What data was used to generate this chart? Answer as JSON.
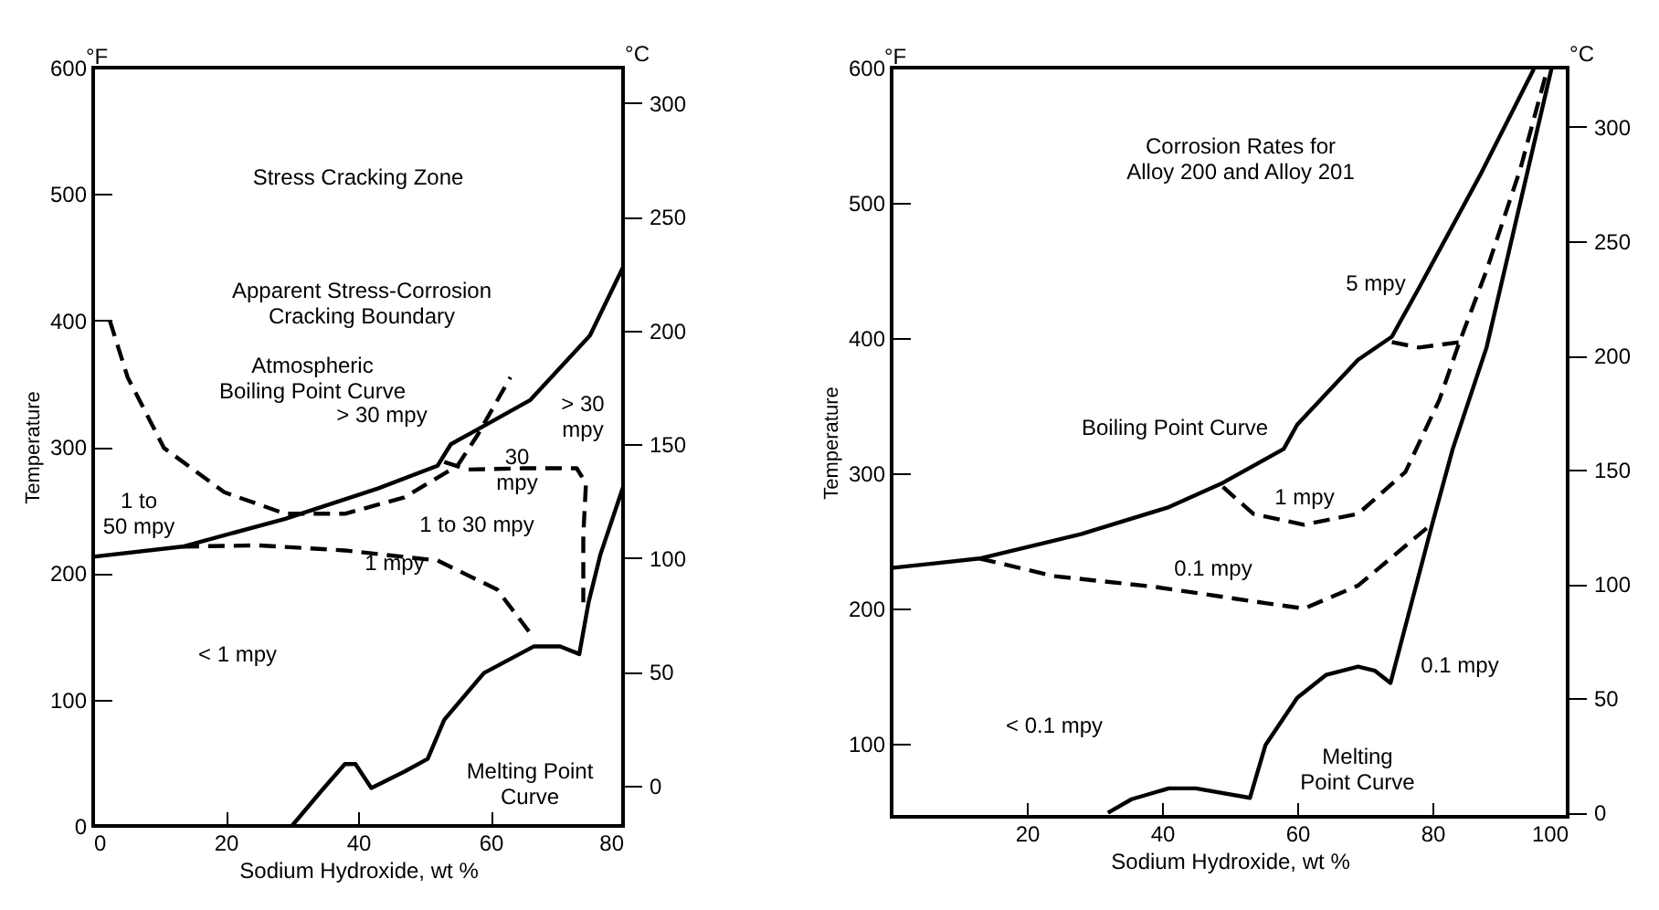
{
  "chart_data": [
    {
      "type": "line",
      "xlabel": "Sodium Hydroxide, wt %",
      "ylabel": "Temperature",
      "y2label": "°C",
      "xlim": [
        0,
        80
      ],
      "xticks": [
        0,
        20,
        40,
        60,
        80
      ],
      "ylim": [
        0,
        600
      ],
      "yticks": [
        0,
        100,
        200,
        300,
        400,
        500,
        600
      ],
      "y2lim": [
        -17.8,
        315.6
      ],
      "y2ticks": [
        0,
        50,
        100,
        150,
        200,
        250,
        300
      ],
      "grid": false,
      "legend": false,
      "series": [
        {
          "color": "#000000",
          "line_style": "solid",
          "x": [
            0,
            13.5,
            29,
            43,
            52,
            54,
            66,
            75,
            80
          ],
          "values": [
            213,
            221,
            243,
            267,
            285,
            302,
            337,
            388,
            442
          ]
        },
        {
          "color": "#000000",
          "line_style": "dashed",
          "x": [
            2.5,
            5.2,
            10.7,
            19.8,
            29,
            38,
            47,
            55,
            58,
            63
          ],
          "values": [
            400,
            355,
            299,
            264,
            247,
            247,
            260,
            285,
            309,
            355
          ]
        },
        {
          "color": "#000000",
          "line_style": "dashed",
          "x": [
            53,
            56.5,
            65,
            73,
            74.4,
            74,
            74
          ],
          "values": [
            288,
            282,
            283,
            283,
            271,
            230,
            177
          ]
        },
        {
          "color": "#000000",
          "line_style": "dashed",
          "x": [
            13.5,
            25,
            38,
            52,
            61,
            66.5
          ],
          "values": [
            221,
            222,
            218,
            210,
            187,
            149
          ]
        },
        {
          "color": "#000000",
          "line_style": "solid",
          "x": [
            30,
            34.5,
            38,
            39.6,
            42,
            47,
            50.5,
            53,
            59,
            66.5,
            70.5,
            73.4,
            74.8,
            76.6,
            80
          ],
          "values": [
            0,
            28,
            49,
            49,
            30,
            43,
            53,
            84,
            121,
            142,
            142,
            136,
            177,
            215,
            268
          ]
        }
      ],
      "annotations": [
        "°F",
        "Stress Cracking Zone",
        "Apparent Stress-Corrosion\nCracking Boundary",
        "Atmospheric\nBoiling Point Curve",
        "> 30 mpy",
        "> 30\nmpy",
        "30\nmpy",
        "1 to\n50 mpy",
        "1 to 30 mpy",
        "1 mpy",
        "< 1 mpy",
        "Melting Point\nCurve"
      ]
    },
    {
      "type": "line",
      "xlabel": "Sodium Hydroxide, wt %",
      "ylabel": "Temperature",
      "y2label": "°C",
      "xlim": [
        0,
        100
      ],
      "xticks": [
        20,
        40,
        60,
        80,
        100
      ],
      "ylim": [
        46,
        600
      ],
      "yticks": [
        100,
        200,
        300,
        400,
        500,
        600
      ],
      "y2lim": [
        -2,
        326
      ],
      "y2ticks": [
        0,
        50,
        100,
        150,
        200,
        250,
        300
      ],
      "grid": false,
      "legend": false,
      "series": [
        {
          "color": "#000000",
          "line_style": "solid",
          "x": [
            0,
            13,
            28,
            41,
            49,
            58,
            60,
            69,
            74,
            78,
            87,
            95
          ],
          "values": [
            230,
            237,
            255,
            275,
            293,
            318,
            336,
            384,
            401,
            437,
            520,
            599
          ]
        },
        {
          "color": "#000000",
          "line_style": "solid",
          "x": [
            32,
            35.5,
            41,
            45,
            53,
            55.3,
            60,
            64.3,
            69,
            71.5,
            73.8,
            80,
            83,
            88,
            97.6
          ],
          "values": [
            49,
            59,
            67,
            67,
            60,
            99,
            134,
            151,
            157,
            154,
            145,
            263,
            318,
            393,
            599
          ]
        },
        {
          "color": "#000000",
          "line_style": "dashed",
          "x": [
            13,
            24,
            39,
            55.3,
            61,
            69,
            80
          ],
          "values": [
            237,
            224,
            216,
            204,
            200,
            217,
            263
          ]
        },
        {
          "color": "#000000",
          "line_style": "dashed",
          "x": [
            49,
            53.5,
            61,
            69,
            76,
            81,
            84,
            88,
            93,
            97
          ],
          "values": [
            290,
            270,
            262,
            270,
            301,
            354,
            397,
            450,
            525,
            599
          ]
        },
        {
          "color": "#000000",
          "line_style": "dashed",
          "x": [
            74,
            78,
            84
          ],
          "values": [
            397,
            393,
            397
          ]
        }
      ],
      "annotations": [
        "°F",
        "Corrosion Rates for\nAlloy 200 and Alloy 201",
        "5 mpy",
        "Boiling Point Curve",
        "1 mpy",
        "0.1 mpy",
        "0.1 mpy",
        "< 0.1 mpy",
        "Melting\nPoint Curve"
      ]
    }
  ]
}
